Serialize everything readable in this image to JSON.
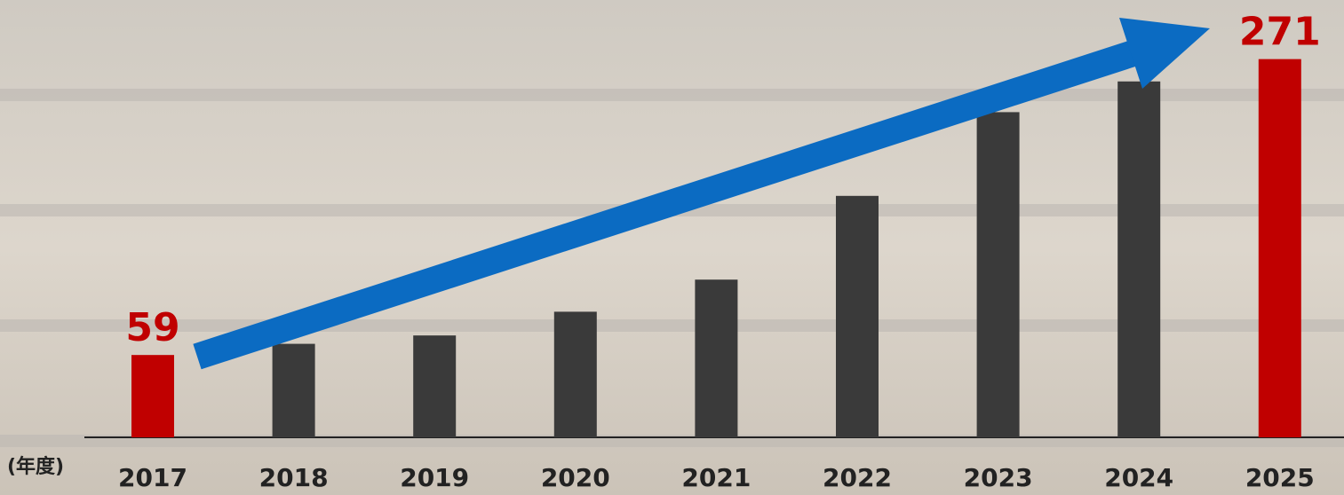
{
  "chart_data": {
    "type": "bar",
    "x_label": "(年度)",
    "categories": [
      "2017",
      "2018",
      "2019",
      "2020",
      "2021",
      "2022",
      "2023",
      "2024",
      "2025"
    ],
    "values": [
      59,
      67,
      73,
      90,
      113,
      173,
      233,
      255,
      271
    ],
    "colors": [
      "#c00000",
      "#3a3a3a",
      "#3a3a3a",
      "#3a3a3a",
      "#3a3a3a",
      "#3a3a3a",
      "#3a3a3a",
      "#3a3a3a",
      "#c00000"
    ],
    "labeled": [
      0,
      8
    ],
    "ylim": [
      0,
      300
    ]
  }
}
